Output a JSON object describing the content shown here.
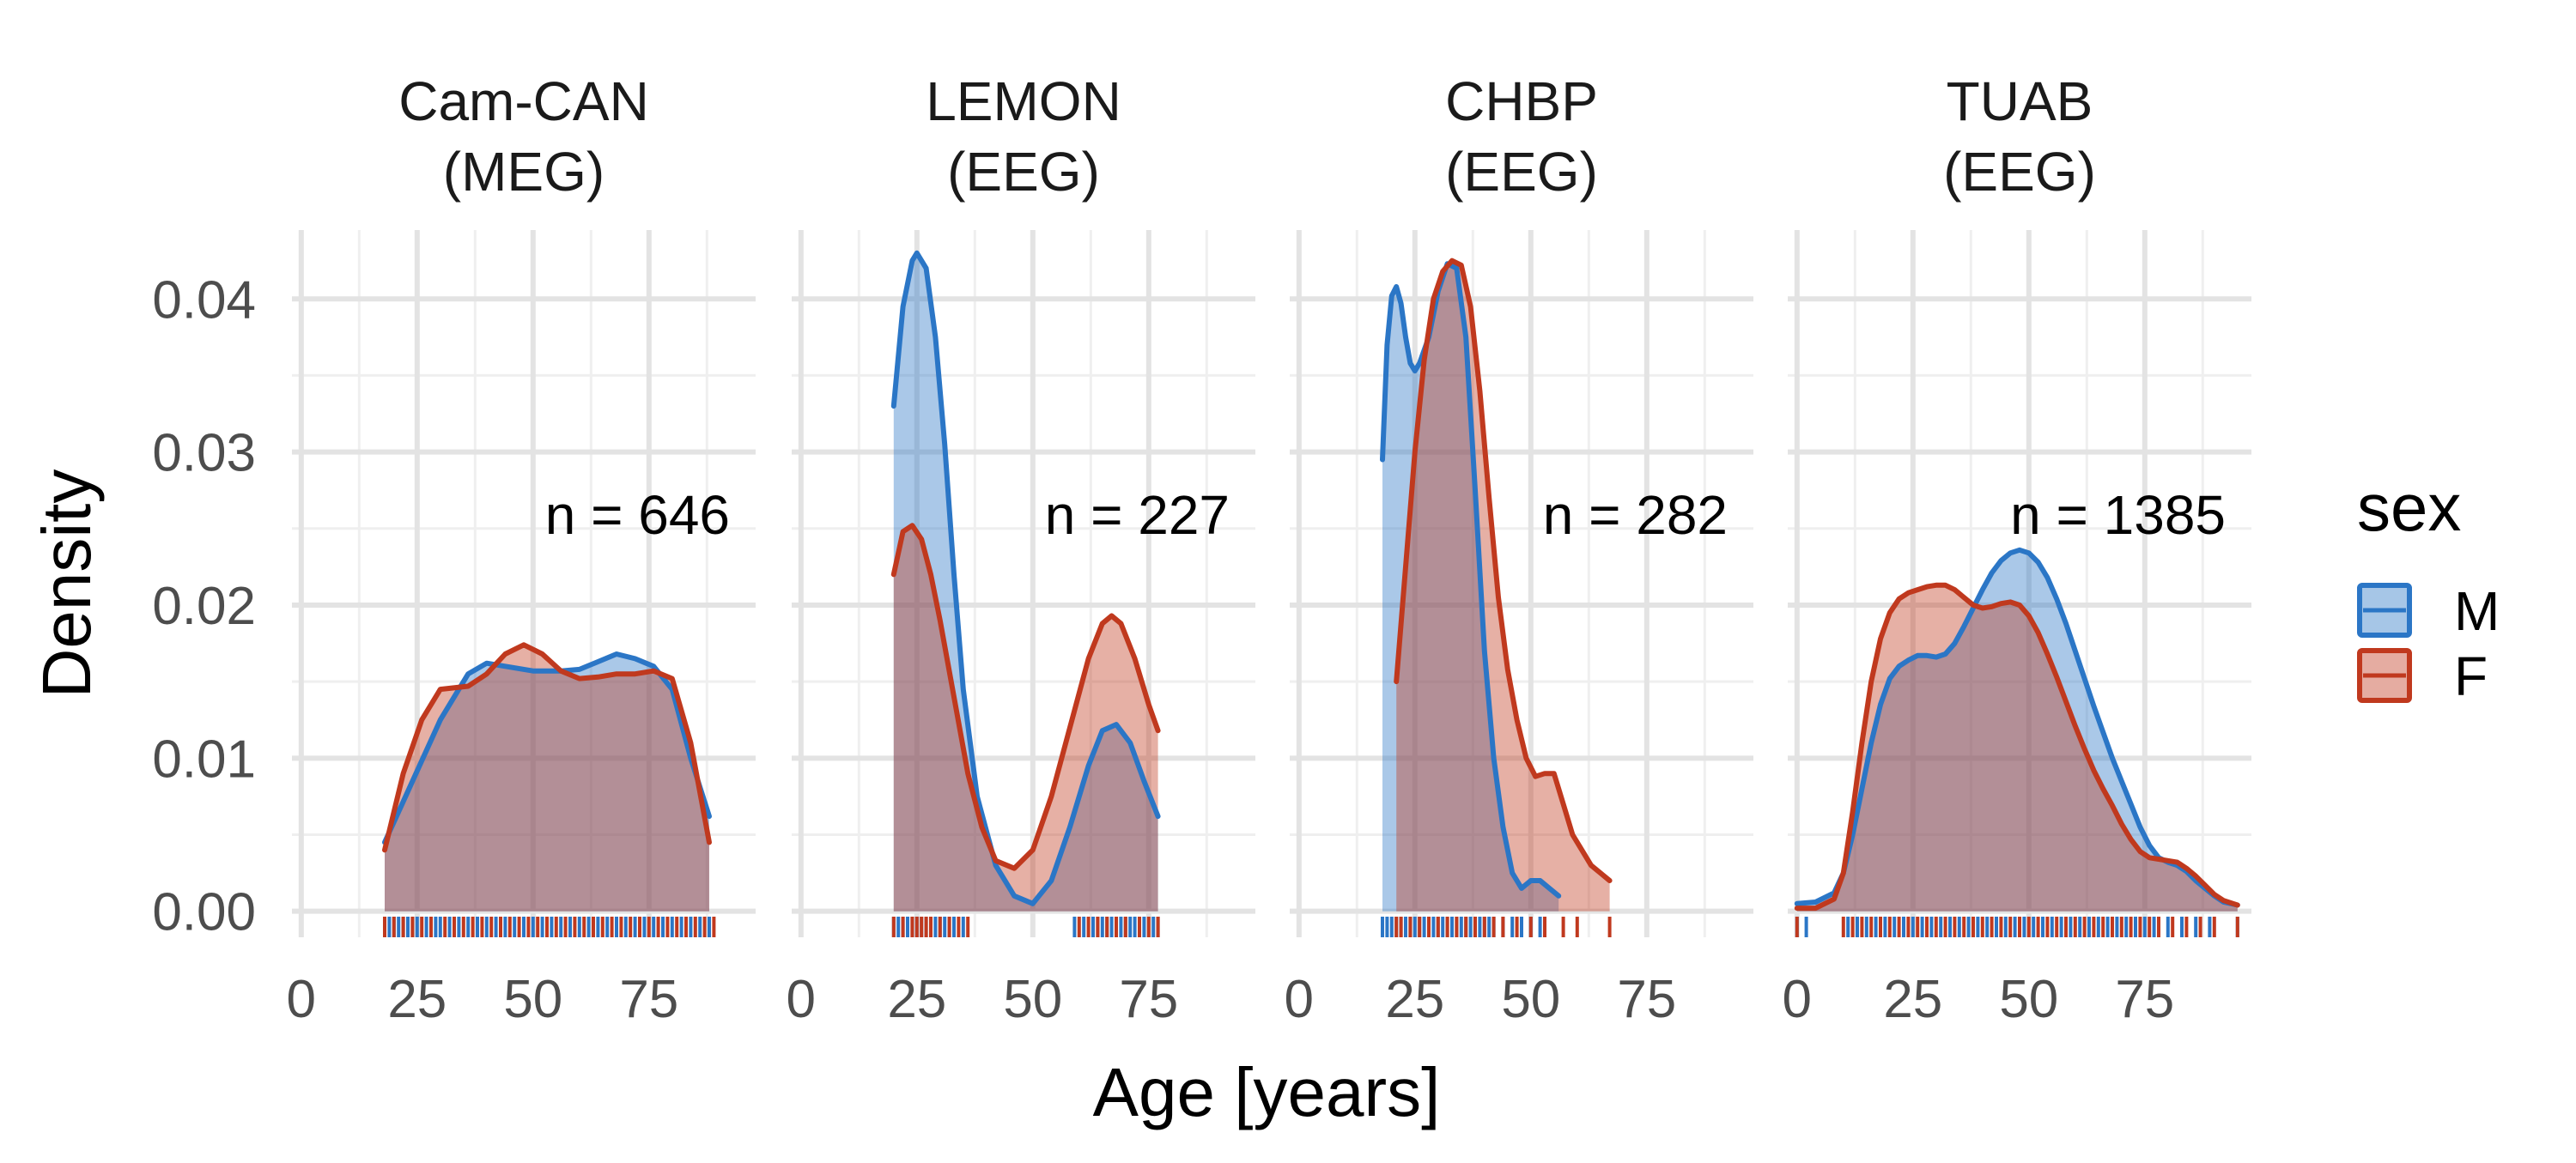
{
  "colors": {
    "male": "#2b76c6",
    "female": "#c0391e",
    "grid_major": "#e3e3e3",
    "grid_minor": "#efefef"
  },
  "chart_data": {
    "type": "area",
    "subtype": "faceted-density",
    "xlabel": "Age [years]",
    "ylabel": "Density",
    "xlim": [
      -2,
      98
    ],
    "ylim": [
      -0.0017,
      0.0445
    ],
    "x_ticks": [
      "0",
      "25",
      "50",
      "75"
    ],
    "x_tick_values": [
      0,
      25,
      50,
      75
    ],
    "y_ticks": [
      "0.00",
      "0.01",
      "0.02",
      "0.03",
      "0.04"
    ],
    "y_tick_values": [
      0,
      0.01,
      0.02,
      0.03,
      0.04
    ],
    "legend": {
      "title": "sex",
      "position": "right",
      "entries": [
        {
          "key": "M",
          "label": "M"
        },
        {
          "key": "F",
          "label": "F"
        }
      ]
    },
    "facets": [
      {
        "title": "Cam-CAN",
        "subtitle": "(MEG)",
        "n_label": "n = 646",
        "series": [
          {
            "name": "M",
            "x": [
              18,
              24,
              30,
              36,
              40,
              44,
              50,
              56,
              60,
              64,
              68,
              72,
              76,
              80,
              84,
              88
            ],
            "y": [
              0.0045,
              0.0085,
              0.0125,
              0.0155,
              0.0162,
              0.016,
              0.0157,
              0.0157,
              0.0158,
              0.0163,
              0.0168,
              0.0165,
              0.016,
              0.0145,
              0.01,
              0.0062
            ]
          },
          {
            "name": "F",
            "x": [
              18,
              22,
              26,
              30,
              36,
              40,
              44,
              48,
              52,
              56,
              60,
              64,
              68,
              72,
              76,
              80,
              84,
              88
            ],
            "y": [
              0.004,
              0.009,
              0.0125,
              0.0145,
              0.0147,
              0.0155,
              0.0168,
              0.0174,
              0.0168,
              0.0157,
              0.0152,
              0.0153,
              0.0155,
              0.0155,
              0.0157,
              0.0152,
              0.011,
              0.0045
            ]
          }
        ],
        "rug": {
          "M": [
            18,
            19,
            20,
            21,
            22,
            23,
            24,
            25,
            27,
            29,
            30,
            32,
            34,
            36,
            38,
            40,
            42,
            44,
            46,
            48,
            50,
            52,
            54,
            56,
            58,
            60,
            62,
            64,
            66,
            68,
            70,
            72,
            74,
            76,
            78,
            80,
            82,
            84,
            86,
            88
          ],
          "F": [
            18,
            20,
            22,
            24,
            26,
            28,
            31,
            33,
            35,
            37,
            39,
            41,
            43,
            45,
            47,
            49,
            51,
            53,
            55,
            57,
            59,
            61,
            63,
            65,
            67,
            69,
            71,
            73,
            75,
            77,
            79,
            81,
            83,
            85,
            87,
            89
          ]
        }
      },
      {
        "title": "LEMON",
        "subtitle": "(EEG)",
        "n_label": "n = 227",
        "series": [
          {
            "name": "M",
            "x": [
              20,
              22,
              24,
              25,
              27,
              29,
              31,
              33,
              35,
              38,
              42,
              46,
              50,
              54,
              58,
              62,
              65,
              68,
              71,
              74,
              77
            ],
            "y": [
              0.033,
              0.0395,
              0.0425,
              0.043,
              0.042,
              0.0375,
              0.0305,
              0.022,
              0.0145,
              0.0075,
              0.003,
              0.001,
              0.0005,
              0.002,
              0.0055,
              0.0095,
              0.0118,
              0.0122,
              0.011,
              0.0085,
              0.0062
            ]
          },
          {
            "name": "F",
            "x": [
              20,
              22,
              24,
              26,
              28,
              30,
              33,
              36,
              39,
              42,
              46,
              50,
              54,
              58,
              62,
              65,
              67,
              69,
              72,
              75,
              77
            ],
            "y": [
              0.022,
              0.0248,
              0.0252,
              0.0243,
              0.022,
              0.019,
              0.014,
              0.009,
              0.0055,
              0.0033,
              0.0028,
              0.004,
              0.0075,
              0.012,
              0.0165,
              0.0188,
              0.0193,
              0.0188,
              0.0165,
              0.0135,
              0.0118
            ]
          }
        ],
        "rug": {
          "M": [
            20,
            21,
            22,
            23,
            24,
            25,
            26,
            27,
            28,
            29,
            30,
            31,
            32,
            33,
            35,
            59,
            61,
            63,
            64,
            65,
            66,
            67,
            68,
            69,
            70,
            71,
            72,
            74,
            76,
            77
          ],
          "F": [
            20,
            22,
            24,
            25,
            26,
            27,
            28,
            30,
            32,
            34,
            36,
            60,
            62,
            64,
            66,
            68,
            70,
            73,
            75,
            77
          ]
        }
      },
      {
        "title": "CHBP",
        "subtitle": "(EEG)",
        "n_label": "n = 282",
        "series": [
          {
            "name": "M",
            "x": [
              18,
              19,
              20,
              21,
              22,
              23,
              24,
              25,
              26,
              28,
              30,
              32,
              34,
              36,
              38,
              40,
              42,
              44,
              46,
              48,
              50,
              52,
              54,
              56
            ],
            "y": [
              0.0295,
              0.037,
              0.0402,
              0.0408,
              0.0397,
              0.0375,
              0.0358,
              0.0353,
              0.0358,
              0.0375,
              0.0405,
              0.0423,
              0.042,
              0.0375,
              0.0275,
              0.017,
              0.01,
              0.0055,
              0.0025,
              0.0015,
              0.002,
              0.002,
              0.0015,
              0.001
            ]
          },
          {
            "name": "F",
            "x": [
              21,
              23,
              25,
              27,
              29,
              31,
              33,
              35,
              37,
              39,
              41,
              43,
              45,
              47,
              49,
              51,
              53,
              55,
              57,
              59,
              61,
              63,
              65,
              67
            ],
            "y": [
              0.015,
              0.0225,
              0.03,
              0.036,
              0.04,
              0.0418,
              0.0425,
              0.0422,
              0.0395,
              0.034,
              0.027,
              0.0205,
              0.0158,
              0.0125,
              0.01,
              0.0088,
              0.009,
              0.009,
              0.007,
              0.005,
              0.004,
              0.003,
              0.0025,
              0.002
            ]
          }
        ],
        "rug": {
          "M": [
            18,
            19,
            20,
            21,
            22,
            23,
            24,
            25,
            26,
            27,
            28,
            29,
            30,
            31,
            32,
            33,
            34,
            35,
            36,
            37,
            38,
            39,
            40,
            41,
            42,
            44,
            46,
            48,
            50,
            52
          ],
          "F": [
            21,
            22,
            24,
            26,
            28,
            30,
            32,
            34,
            36,
            38,
            40,
            42,
            44,
            47,
            50,
            53,
            57,
            60,
            67
          ]
        }
      },
      {
        "title": "TUAB",
        "subtitle": "(EEG)",
        "n_label": "n = 1385",
        "series": [
          {
            "name": "M",
            "x": [
              0,
              4,
              8,
              10,
              12,
              14,
              16,
              18,
              20,
              22,
              24,
              26,
              28,
              30,
              32,
              34,
              36,
              38,
              40,
              42,
              44,
              46,
              48,
              50,
              52,
              54,
              56,
              58,
              60,
              62,
              64,
              66,
              68,
              70,
              72,
              74,
              76,
              78,
              80,
              82,
              84,
              86,
              88,
              90,
              92,
              95
            ],
            "y": [
              0.0005,
              0.0006,
              0.0012,
              0.0025,
              0.005,
              0.008,
              0.011,
              0.0135,
              0.0152,
              0.016,
              0.0164,
              0.0167,
              0.0167,
              0.0166,
              0.0168,
              0.0175,
              0.0186,
              0.0198,
              0.021,
              0.0221,
              0.0229,
              0.0234,
              0.0236,
              0.0234,
              0.0228,
              0.0218,
              0.0204,
              0.0188,
              0.017,
              0.0152,
              0.0134,
              0.0117,
              0.01,
              0.0085,
              0.007,
              0.0055,
              0.0043,
              0.0035,
              0.0032,
              0.003,
              0.0026,
              0.002,
              0.0015,
              0.001,
              0.0006,
              0.0004
            ]
          },
          {
            "name": "F",
            "x": [
              0,
              4,
              8,
              10,
              12,
              14,
              16,
              18,
              20,
              22,
              24,
              26,
              28,
              30,
              32,
              34,
              36,
              38,
              40,
              42,
              44,
              46,
              48,
              50,
              52,
              54,
              56,
              58,
              60,
              62,
              64,
              66,
              68,
              70,
              72,
              74,
              76,
              78,
              80,
              82,
              84,
              86,
              88,
              90,
              92,
              95
            ],
            "y": [
              0.0002,
              0.0002,
              0.0008,
              0.0025,
              0.0065,
              0.011,
              0.015,
              0.0178,
              0.0195,
              0.0204,
              0.0208,
              0.021,
              0.0212,
              0.0213,
              0.0213,
              0.021,
              0.0205,
              0.02,
              0.0198,
              0.0199,
              0.0201,
              0.0202,
              0.02,
              0.0193,
              0.0182,
              0.0168,
              0.0153,
              0.0137,
              0.0121,
              0.0106,
              0.0092,
              0.008,
              0.0069,
              0.0057,
              0.0047,
              0.0039,
              0.0035,
              0.0034,
              0.0033,
              0.0032,
              0.0028,
              0.0023,
              0.0017,
              0.0011,
              0.0007,
              0.0004
            ]
          }
        ],
        "rug": {
          "M": [
            0,
            2,
            11,
            13,
            15,
            17,
            19,
            21,
            23,
            25,
            27,
            29,
            31,
            33,
            35,
            37,
            39,
            41,
            43,
            45,
            47,
            49,
            51,
            53,
            55,
            57,
            59,
            61,
            63,
            65,
            67,
            69,
            71,
            73,
            75,
            77,
            80,
            83,
            86,
            89,
            95
          ],
          "F": [
            0,
            10,
            12,
            14,
            16,
            18,
            20,
            22,
            24,
            26,
            28,
            30,
            32,
            34,
            36,
            38,
            40,
            42,
            44,
            46,
            48,
            50,
            52,
            54,
            56,
            58,
            60,
            62,
            64,
            66,
            68,
            70,
            72,
            74,
            76,
            78,
            81,
            84,
            87,
            90,
            95
          ]
        }
      }
    ]
  }
}
